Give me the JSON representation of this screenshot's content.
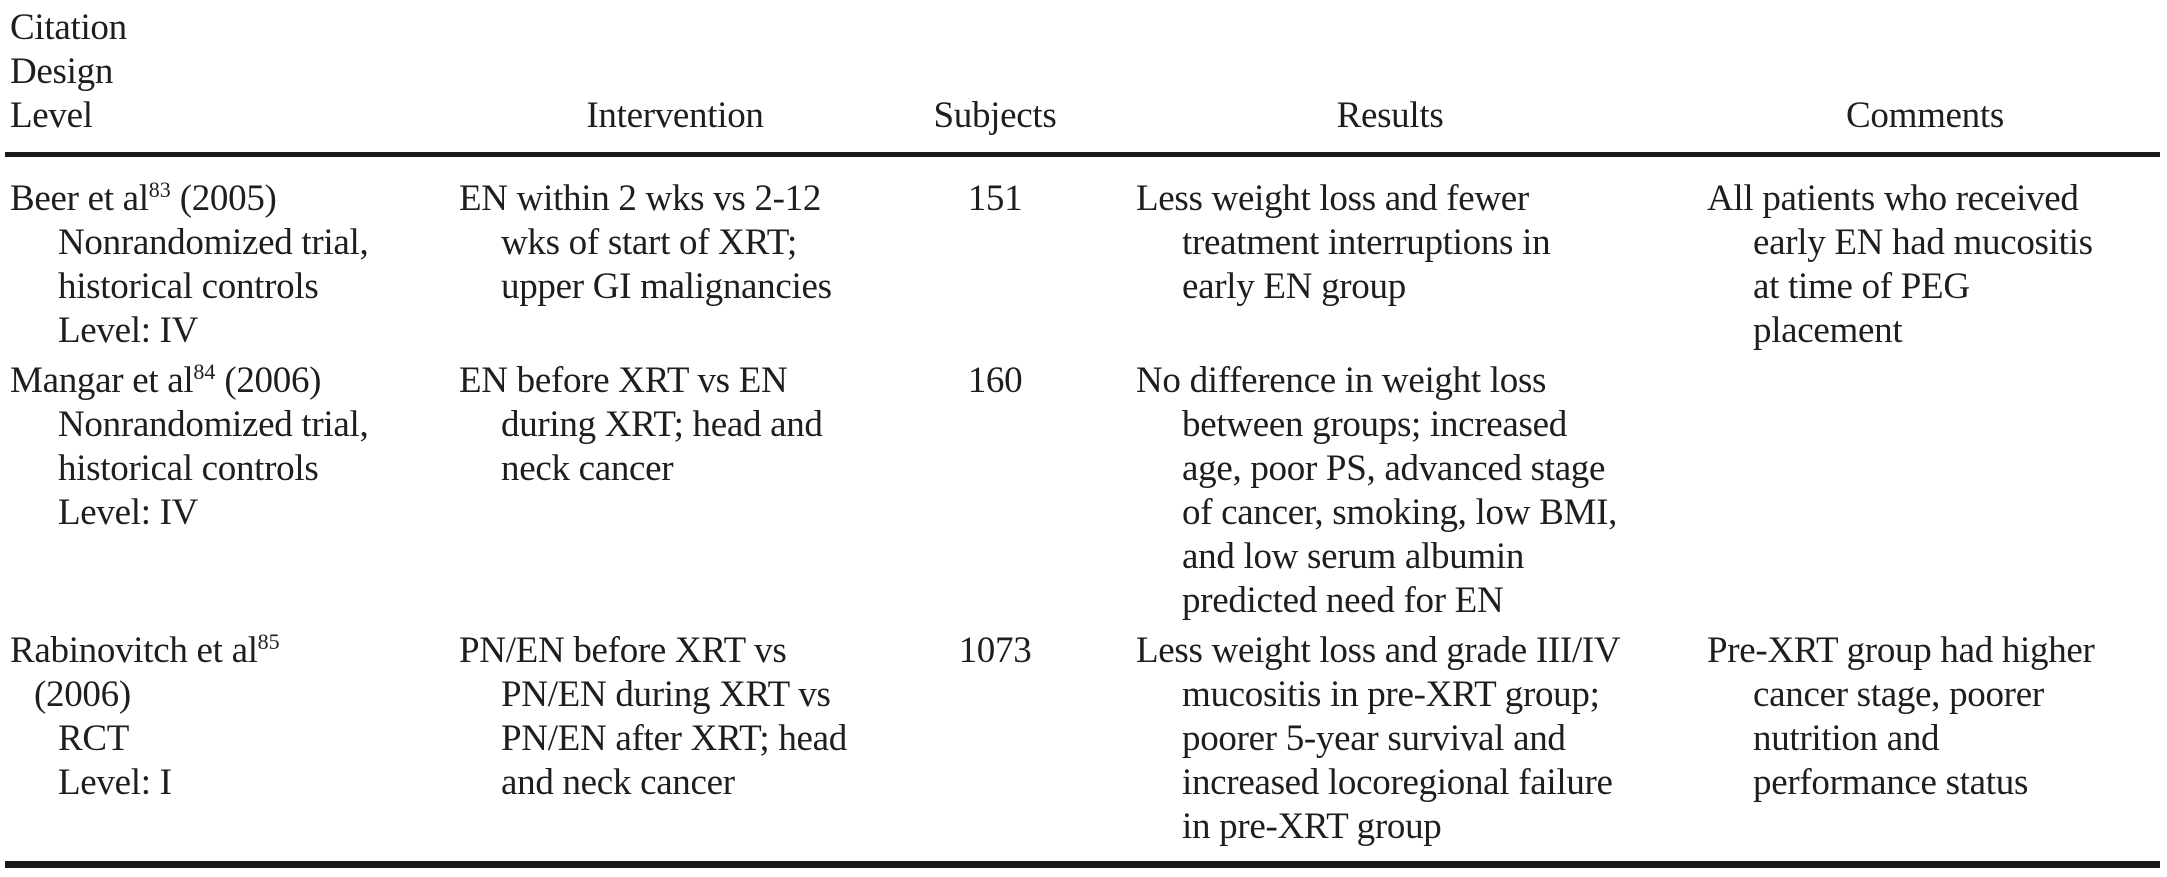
{
  "table": {
    "header": {
      "stacked": [
        "Citation",
        "Design",
        "Level"
      ],
      "columns": [
        "Intervention",
        "Subjects",
        "Results",
        "Comments"
      ]
    },
    "rows": [
      {
        "citation": {
          "author": "Beer et al",
          "ref": "83",
          "year": " (2005)",
          "design_lines": [
            "Nonrandomized trial,",
            "historical controls",
            "Level: IV"
          ]
        },
        "intervention_lines": [
          "EN within 2 wks vs 2-12",
          "wks of start of XRT;",
          "upper GI malignancies"
        ],
        "subjects": "151",
        "results_lines": [
          "Less weight loss and fewer",
          "treatment interruptions in",
          "early EN group"
        ],
        "comments_lines": [
          "All patients who received",
          "early EN had mucositis",
          "at time of PEG",
          "placement"
        ]
      },
      {
        "citation": {
          "author": "Mangar et al",
          "ref": "84",
          "year": " (2006)",
          "design_lines": [
            "Nonrandomized trial,",
            "historical controls",
            "Level: IV"
          ]
        },
        "intervention_lines": [
          "EN before XRT vs EN",
          "during XRT; head and",
          "neck cancer"
        ],
        "subjects": "160",
        "results_lines": [
          "No difference in weight loss",
          "between groups; increased",
          "age, poor PS, advanced stage",
          "of cancer, smoking, low BMI,",
          "and low serum albumin",
          "predicted need for EN"
        ],
        "comments_lines": []
      },
      {
        "citation": {
          "author": "Rabinovitch et al",
          "ref": "85",
          "year": "",
          "design_lines": [
            "(2006)",
            "RCT",
            "Level: I"
          ]
        },
        "intervention_lines": [
          "PN/EN before XRT vs",
          "PN/EN during XRT vs",
          "PN/EN after XRT; head",
          "and neck cancer"
        ],
        "subjects": "1073",
        "results_lines": [
          "Less weight loss and grade III/IV",
          "mucositis in pre-XRT group;",
          "poorer 5-year survival and",
          "increased locoregional failure",
          "in pre-XRT group"
        ],
        "comments_lines": [
          "Pre-XRT group had higher",
          "cancer stage, poorer",
          "nutrition and",
          "performance status"
        ]
      }
    ]
  }
}
